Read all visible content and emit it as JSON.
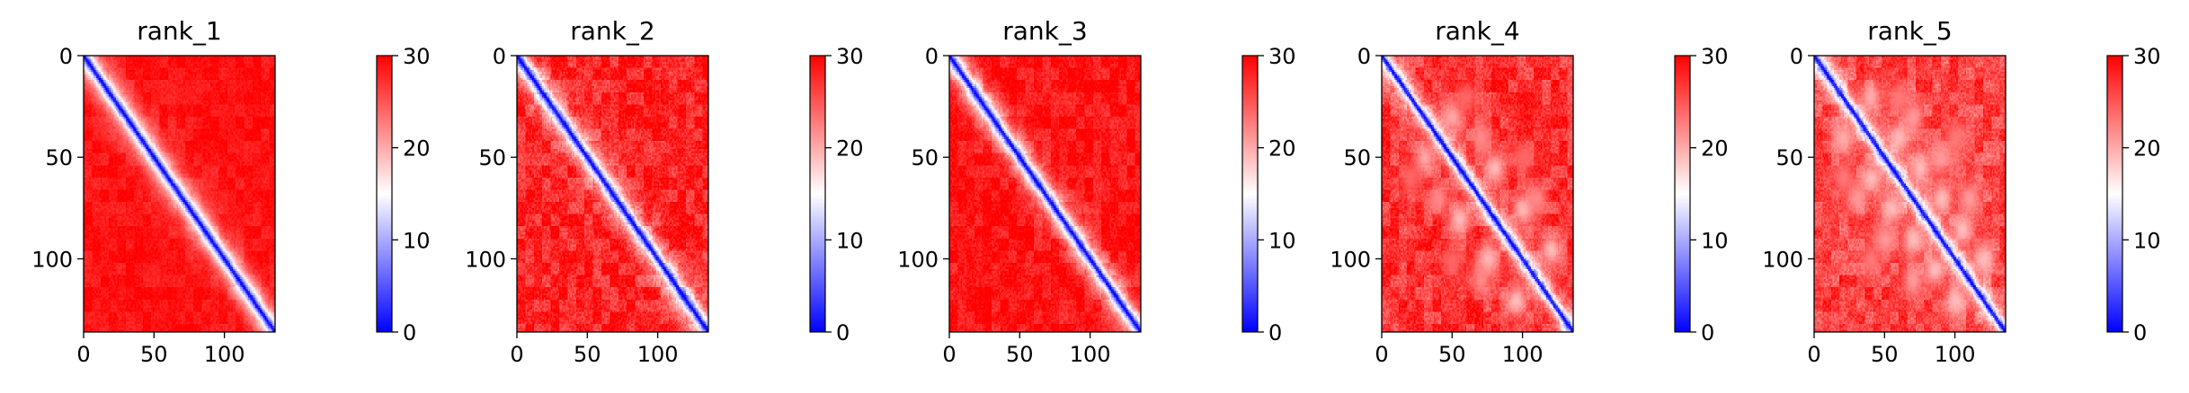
{
  "chart_data": [
    {
      "type": "heatmap",
      "title": "rank_1",
      "matrix_size": 136,
      "colormap": "bwr",
      "clim": [
        0,
        30
      ],
      "xticks": [
        0,
        50,
        100
      ],
      "yticks": [
        0,
        50,
        100
      ],
      "colorbar_ticks": [
        0,
        10,
        20,
        30
      ],
      "diagonal_band_width": 2.0,
      "off_diagonal_level": 29,
      "texture_amplitude": 2,
      "hot_spots": []
    },
    {
      "type": "heatmap",
      "title": "rank_2",
      "matrix_size": 136,
      "colormap": "bwr",
      "clim": [
        0,
        30
      ],
      "xticks": [
        0,
        50,
        100
      ],
      "yticks": [
        0,
        50,
        100
      ],
      "colorbar_ticks": [
        0,
        10,
        20,
        30
      ],
      "diagonal_band_width": 1.9,
      "off_diagonal_level": 28,
      "texture_amplitude": 4,
      "hot_spots": []
    },
    {
      "type": "heatmap",
      "title": "rank_3",
      "matrix_size": 136,
      "colormap": "bwr",
      "clim": [
        0,
        30
      ],
      "xticks": [
        0,
        50,
        100
      ],
      "yticks": [
        0,
        50,
        100
      ],
      "colorbar_ticks": [
        0,
        10,
        20,
        30
      ],
      "diagonal_band_width": 1.9,
      "off_diagonal_level": 29,
      "texture_amplitude": 3,
      "hot_spots": []
    },
    {
      "type": "heatmap",
      "title": "rank_4",
      "matrix_size": 136,
      "colormap": "bwr",
      "clim": [
        0,
        30
      ],
      "xticks": [
        0,
        50,
        100
      ],
      "yticks": [
        0,
        50,
        100
      ],
      "colorbar_ticks": [
        0,
        10,
        20,
        30
      ],
      "diagonal_band_width": 1.5,
      "off_diagonal_level": 27,
      "texture_amplitude": 4,
      "hot_spots": [
        [
          30,
          50,
          20
        ],
        [
          55,
          80,
          19
        ],
        [
          75,
          100,
          19
        ],
        [
          95,
          120,
          19
        ],
        [
          20,
          60,
          24
        ],
        [
          50,
          100,
          24
        ],
        [
          40,
          70,
          22
        ],
        [
          70,
          110,
          22
        ]
      ]
    },
    {
      "type": "heatmap",
      "title": "rank_5",
      "matrix_size": 136,
      "colormap": "bwr",
      "clim": [
        0,
        30
      ],
      "xticks": [
        0,
        50,
        100
      ],
      "yticks": [
        0,
        50,
        100
      ],
      "colorbar_ticks": [
        0,
        10,
        20,
        30
      ],
      "diagonal_band_width": 1.5,
      "off_diagonal_level": 26,
      "texture_amplitude": 4,
      "hot_spots": [
        [
          20,
          40,
          20
        ],
        [
          40,
          60,
          19
        ],
        [
          55,
          75,
          19
        ],
        [
          70,
          90,
          19
        ],
        [
          85,
          105,
          19
        ],
        [
          100,
          120,
          19
        ],
        [
          30,
          70,
          21
        ],
        [
          50,
          90,
          21
        ],
        [
          70,
          110,
          21
        ],
        [
          20,
          60,
          23
        ],
        [
          40,
          100,
          23
        ]
      ]
    }
  ]
}
